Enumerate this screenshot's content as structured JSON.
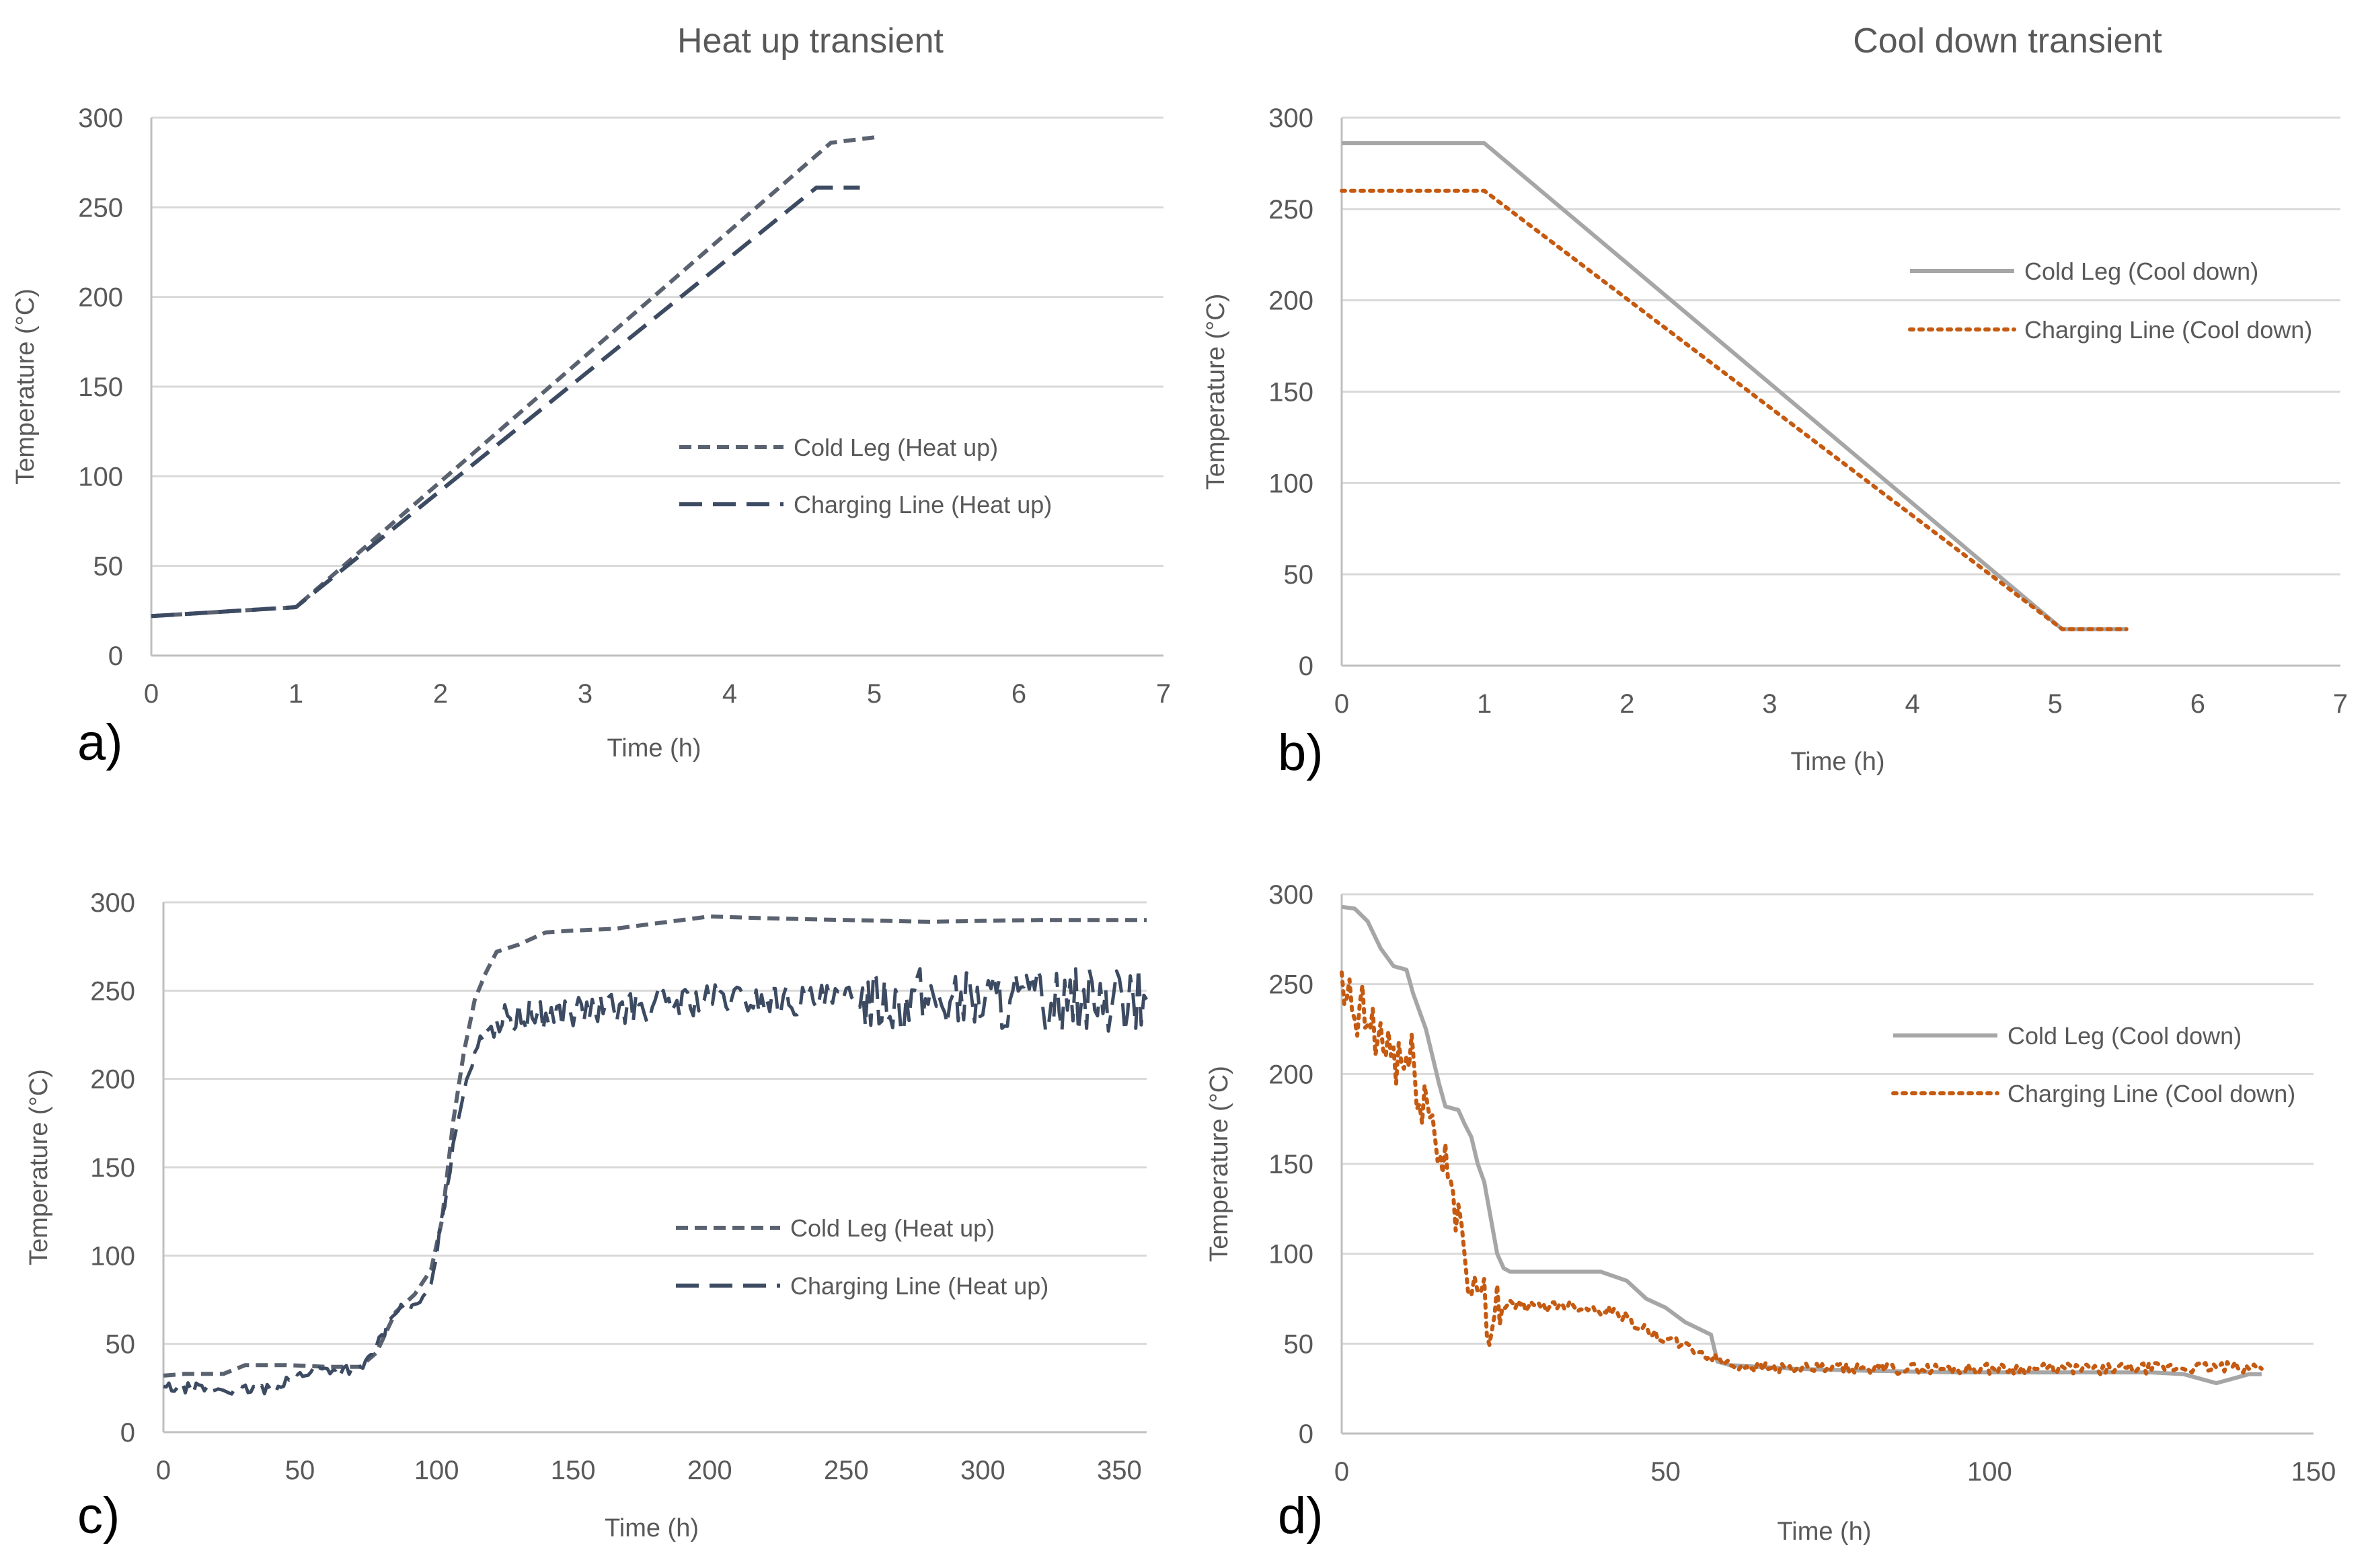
{
  "figure": {
    "column_titles": [
      "Heat up transient",
      "Cool down transient"
    ]
  },
  "colors": {
    "cold_leg_heat": "#5a6270",
    "charging_heat": "#3c4b62",
    "cold_leg_cool": "#a6a6a6",
    "charging_cool": "#c55a11"
  },
  "chart_data": [
    {
      "id": "a",
      "panel_label": "a)",
      "type": "line",
      "xlabel": "Time (h)",
      "ylabel": "Temperature (°C)",
      "xlim": [
        0,
        7
      ],
      "ylim": [
        0,
        300
      ],
      "xticks": [
        0,
        1,
        2,
        3,
        4,
        5,
        6,
        7
      ],
      "yticks": [
        0,
        50,
        100,
        150,
        200,
        250,
        300
      ],
      "grid": true,
      "legend_position": "center-right",
      "series": [
        {
          "name": "Cold Leg (Heat up)",
          "style": "short-dash",
          "color": "#5a6270",
          "x": [
            0,
            1,
            4.7,
            5
          ],
          "y": [
            22,
            27,
            286,
            289
          ]
        },
        {
          "name": "Charging Line (Heat up)",
          "style": "long-dash",
          "color": "#3c4b62",
          "x": [
            0,
            1,
            4.6,
            4.9
          ],
          "y": [
            22,
            27,
            261,
            261
          ]
        }
      ]
    },
    {
      "id": "b",
      "panel_label": "b)",
      "type": "line",
      "xlabel": "Time (h)",
      "ylabel": "Temperature (°C)",
      "xlim": [
        0,
        7
      ],
      "ylim": [
        0,
        300
      ],
      "xticks": [
        0,
        1,
        2,
        3,
        4,
        5,
        6,
        7
      ],
      "yticks": [
        0,
        50,
        100,
        150,
        200,
        250,
        300
      ],
      "grid": true,
      "legend_position": "top-right",
      "series": [
        {
          "name": "Cold Leg (Cool down)",
          "style": "solid",
          "color": "#a6a6a6",
          "x": [
            0,
            1,
            5.05,
            5.5
          ],
          "y": [
            286,
            286,
            20,
            20
          ]
        },
        {
          "name": "Charging Line (Cool down)",
          "style": "dotted",
          "color": "#c55a11",
          "x": [
            0,
            1,
            5.05,
            5.5
          ],
          "y": [
            260,
            260,
            20,
            20
          ]
        }
      ]
    },
    {
      "id": "c",
      "panel_label": "c)",
      "type": "line",
      "xlabel": "Time (h)",
      "ylabel": "Temperature  (°C)",
      "xlim": [
        0,
        360
      ],
      "ylim": [
        0,
        300
      ],
      "xticks": [
        0,
        50,
        100,
        150,
        200,
        250,
        300,
        350
      ],
      "yticks": [
        0,
        50,
        100,
        150,
        200,
        250,
        300
      ],
      "grid": true,
      "legend_position": "center-right",
      "series": [
        {
          "name": "Cold Leg (Heat up)",
          "style": "short-dash",
          "color": "#5a6270",
          "x": [
            0,
            8,
            22,
            30,
            45,
            60,
            72,
            78,
            85,
            92,
            98,
            102,
            106,
            110,
            114,
            118,
            122,
            130,
            140,
            150,
            165,
            180,
            200,
            220,
            250,
            280,
            320,
            360
          ],
          "y": [
            32,
            33,
            33,
            38,
            38,
            37,
            37,
            45,
            68,
            78,
            92,
            120,
            175,
            215,
            245,
            260,
            272,
            276,
            283,
            284,
            285,
            288,
            292,
            291,
            290,
            289,
            290,
            290
          ]
        },
        {
          "name": "Charging Line (Heat up)",
          "style": "long-dash",
          "color": "#3c4b62",
          "noisy": true,
          "x": [
            0,
            10,
            25,
            40,
            45,
            55,
            65,
            72,
            78,
            85,
            92,
            98,
            102,
            106,
            110,
            114,
            118,
            122,
            130,
            150,
            170,
            200,
            230,
            250,
            255,
            270,
            290,
            320,
            360
          ],
          "y": [
            25,
            25,
            24,
            24,
            30,
            35,
            36,
            35,
            48,
            70,
            70,
            82,
            120,
            160,
            195,
            215,
            228,
            232,
            235,
            238,
            240,
            245,
            244,
            244,
            248,
            245,
            245,
            245,
            245
          ]
        }
      ]
    },
    {
      "id": "d",
      "panel_label": "d)",
      "type": "line",
      "xlabel": "Time (h)",
      "ylabel": "Temperature  (°C)",
      "xlim": [
        0,
        150
      ],
      "ylim": [
        0,
        300
      ],
      "xticks": [
        0,
        50,
        100,
        150
      ],
      "yticks": [
        0,
        50,
        100,
        150,
        200,
        250,
        300
      ],
      "grid": true,
      "legend_position": "top-right",
      "series": [
        {
          "name": "Cold Leg (Cool down)",
          "style": "solid",
          "color": "#a6a6a6",
          "x": [
            0,
            2,
            4,
            6,
            8,
            10,
            11,
            12,
            13,
            14,
            15,
            16,
            18,
            19,
            20,
            21,
            22,
            23,
            24,
            25,
            26,
            30,
            35,
            40,
            44,
            47,
            50,
            53,
            57,
            58,
            60,
            70,
            80,
            95,
            110,
            125,
            130,
            133,
            135,
            137,
            140,
            142
          ],
          "y": [
            293,
            292,
            285,
            270,
            260,
            258,
            245,
            235,
            225,
            210,
            195,
            182,
            180,
            172,
            165,
            150,
            140,
            120,
            100,
            92,
            90,
            90,
            90,
            90,
            85,
            75,
            70,
            62,
            55,
            40,
            38,
            36,
            35,
            34,
            34,
            34,
            33,
            30,
            28,
            30,
            33,
            33
          ]
        },
        {
          "name": "Charging Line (Cool down)",
          "style": "dotted",
          "color": "#c55a11",
          "noisy": true,
          "x": [
            0,
            2,
            4,
            6,
            8,
            10,
            12,
            14,
            16,
            18,
            19,
            20,
            21,
            22,
            24,
            26,
            30,
            34,
            38,
            42,
            45,
            48,
            52,
            56,
            60,
            70,
            80,
            100,
            120,
            140,
            142
          ],
          "y": [
            240,
            232,
            228,
            218,
            212,
            205,
            195,
            170,
            150,
            130,
            90,
            60,
            85,
            70,
            72,
            72,
            70,
            72,
            70,
            68,
            62,
            55,
            50,
            44,
            38,
            36,
            36,
            36,
            36,
            37,
            36
          ]
        }
      ]
    }
  ]
}
